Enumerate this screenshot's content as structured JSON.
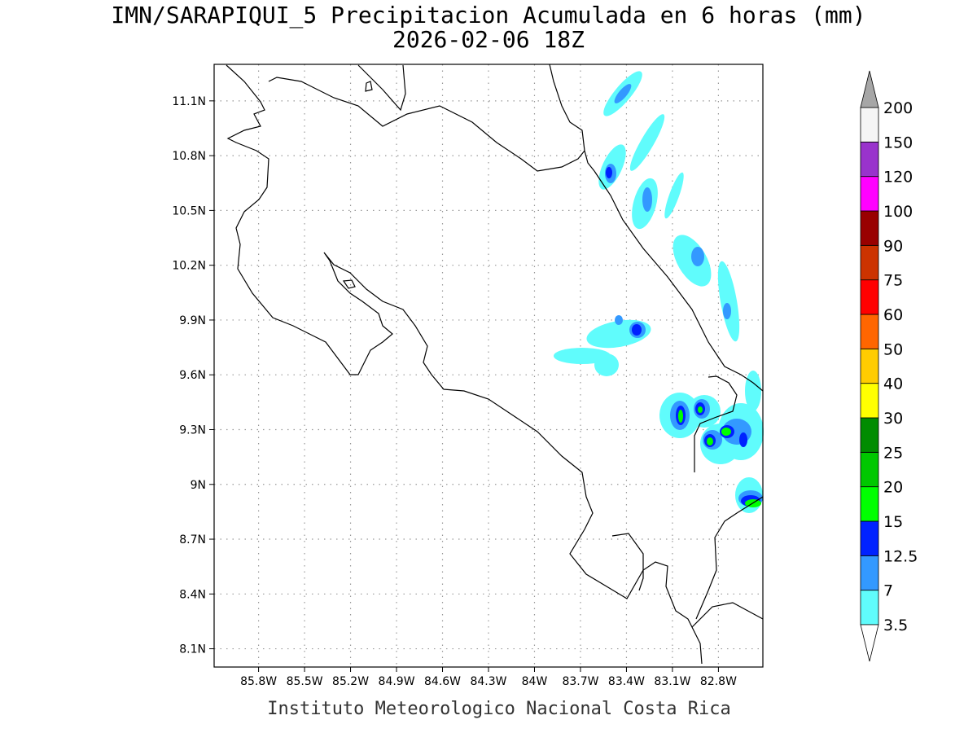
{
  "map": {
    "title": "IMN/SARAPIQUI_5 Precipitacion Acumulada en 6 horas (mm)",
    "subtitle": "2026-02-06 18Z",
    "footer": "Instituto Meteorologico Nacional Costa Rica",
    "xlim": [
      -86.09,
      -82.51
    ],
    "ylim": [
      8.0,
      11.3
    ],
    "xticks": [
      {
        "value": -85.8,
        "label": "85.8W"
      },
      {
        "value": -85.5,
        "label": "85.5W"
      },
      {
        "value": -85.2,
        "label": "85.2W"
      },
      {
        "value": -84.9,
        "label": "84.9W"
      },
      {
        "value": -84.6,
        "label": "84.6W"
      },
      {
        "value": -84.3,
        "label": "84.3W"
      },
      {
        "value": -84.0,
        "label": "84W"
      },
      {
        "value": -83.7,
        "label": "83.7W"
      },
      {
        "value": -83.4,
        "label": "83.4W"
      },
      {
        "value": -83.1,
        "label": "83.1W"
      },
      {
        "value": -82.8,
        "label": "82.8W"
      }
    ],
    "yticks": [
      {
        "value": 11.1,
        "label": "11.1N"
      },
      {
        "value": 10.8,
        "label": "10.8N"
      },
      {
        "value": 10.5,
        "label": "10.5N"
      },
      {
        "value": 10.2,
        "label": "10.2N"
      },
      {
        "value": 9.9,
        "label": "9.9N"
      },
      {
        "value": 9.6,
        "label": "9.6N"
      },
      {
        "value": 9.3,
        "label": "9.3N"
      },
      {
        "value": 9.0,
        "label": "9N"
      },
      {
        "value": 8.7,
        "label": "8.7N"
      },
      {
        "value": 8.4,
        "label": "8.4N"
      },
      {
        "value": 8.1,
        "label": "8.1N"
      }
    ],
    "grid": true,
    "colorbar": {
      "levels": [
        3.5,
        7,
        12.5,
        15,
        20,
        25,
        30,
        40,
        50,
        60,
        75,
        90,
        100,
        120,
        150,
        200
      ],
      "colors": [
        "#60fcfc",
        "#3399ff",
        "#0022ff",
        "#00ff00",
        "#00c800",
        "#008c00",
        "#ffff00",
        "#ffcc00",
        "#ff6600",
        "#ff0000",
        "#cc3300",
        "#990000",
        "#ff00ff",
        "#9933cc",
        "#f5f5f5"
      ],
      "under_color": "#ffffff",
      "over_color": "#a6a6a6"
    }
  }
}
